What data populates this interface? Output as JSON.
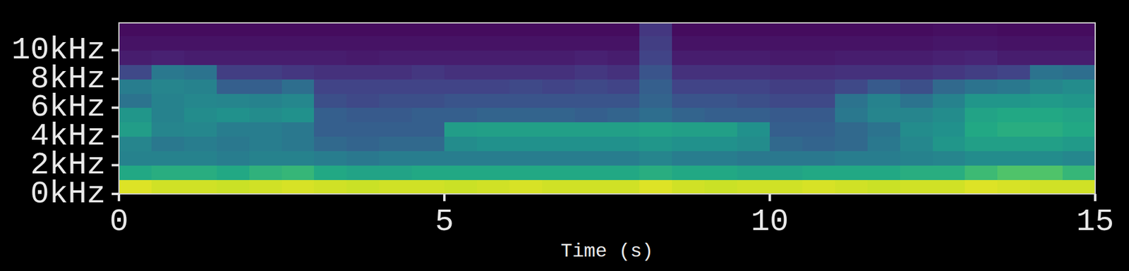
{
  "chart_data": {
    "type": "heatmap",
    "x_label": "Time (s)",
    "xlim": [
      0,
      15
    ],
    "ylim": [
      0,
      11.9
    ],
    "xticks": [
      0,
      5,
      10,
      15
    ],
    "yticks": [
      {
        "value": 0,
        "label": "0kHz"
      },
      {
        "value": 2,
        "label": "2kHz"
      },
      {
        "value": 4,
        "label": "4kHz"
      },
      {
        "value": 6,
        "label": "6kHz"
      },
      {
        "value": 8,
        "label": "8kHz"
      },
      {
        "value": 10,
        "label": "10kHz"
      }
    ],
    "color": "viridis",
    "zlim": [
      0,
      1
    ],
    "xbins": [
      0,
      0.5,
      1,
      1.5,
      2,
      2.5,
      3,
      3.5,
      4,
      4.5,
      5,
      5.5,
      6,
      6.5,
      7,
      7.5,
      8,
      8.5,
      9,
      9.5,
      10,
      10.5,
      11,
      11.5,
      12,
      12.5,
      13,
      13.5,
      14,
      14.5,
      15
    ],
    "ybins": [
      0,
      1,
      2,
      3,
      4,
      5,
      6,
      7,
      8,
      9,
      10,
      11,
      12
    ],
    "values": [
      [
        0.95,
        0.93,
        0.93,
        0.92,
        0.93,
        0.94,
        0.93,
        0.92,
        0.93,
        0.93,
        0.92,
        0.93,
        0.94,
        0.93,
        0.93,
        0.93,
        0.95,
        0.93,
        0.92,
        0.93,
        0.93,
        0.94,
        0.93,
        0.92,
        0.93,
        0.93,
        0.95,
        0.94,
        0.93,
        0.93
      ],
      [
        0.6,
        0.62,
        0.62,
        0.6,
        0.64,
        0.66,
        0.6,
        0.58,
        0.58,
        0.6,
        0.6,
        0.6,
        0.6,
        0.6,
        0.6,
        0.6,
        0.62,
        0.6,
        0.6,
        0.58,
        0.58,
        0.6,
        0.6,
        0.6,
        0.62,
        0.62,
        0.68,
        0.72,
        0.72,
        0.66
      ],
      [
        0.44,
        0.44,
        0.44,
        0.42,
        0.44,
        0.44,
        0.42,
        0.4,
        0.42,
        0.42,
        0.42,
        0.42,
        0.42,
        0.42,
        0.42,
        0.42,
        0.45,
        0.42,
        0.42,
        0.4,
        0.4,
        0.4,
        0.42,
        0.42,
        0.44,
        0.45,
        0.48,
        0.48,
        0.48,
        0.46
      ],
      [
        0.45,
        0.4,
        0.42,
        0.4,
        0.42,
        0.4,
        0.34,
        0.32,
        0.34,
        0.34,
        0.48,
        0.5,
        0.5,
        0.5,
        0.5,
        0.5,
        0.52,
        0.5,
        0.5,
        0.48,
        0.34,
        0.32,
        0.34,
        0.4,
        0.46,
        0.52,
        0.56,
        0.56,
        0.56,
        0.54
      ],
      [
        0.55,
        0.45,
        0.46,
        0.42,
        0.42,
        0.4,
        0.3,
        0.3,
        0.3,
        0.3,
        0.55,
        0.56,
        0.56,
        0.56,
        0.56,
        0.56,
        0.58,
        0.56,
        0.56,
        0.5,
        0.3,
        0.3,
        0.34,
        0.38,
        0.48,
        0.5,
        0.6,
        0.62,
        0.62,
        0.6
      ],
      [
        0.52,
        0.44,
        0.48,
        0.5,
        0.48,
        0.5,
        0.3,
        0.28,
        0.28,
        0.3,
        0.3,
        0.32,
        0.32,
        0.32,
        0.3,
        0.32,
        0.36,
        0.32,
        0.3,
        0.3,
        0.28,
        0.28,
        0.4,
        0.45,
        0.45,
        0.48,
        0.58,
        0.6,
        0.6,
        0.58
      ],
      [
        0.38,
        0.44,
        0.46,
        0.45,
        0.44,
        0.46,
        0.24,
        0.22,
        0.24,
        0.24,
        0.26,
        0.26,
        0.26,
        0.26,
        0.26,
        0.26,
        0.32,
        0.26,
        0.26,
        0.24,
        0.22,
        0.22,
        0.38,
        0.44,
        0.38,
        0.44,
        0.52,
        0.52,
        0.54,
        0.52
      ],
      [
        0.42,
        0.45,
        0.44,
        0.3,
        0.3,
        0.36,
        0.2,
        0.2,
        0.2,
        0.2,
        0.2,
        0.2,
        0.22,
        0.2,
        0.22,
        0.2,
        0.3,
        0.2,
        0.2,
        0.2,
        0.18,
        0.18,
        0.22,
        0.28,
        0.24,
        0.34,
        0.38,
        0.4,
        0.45,
        0.48
      ],
      [
        0.22,
        0.4,
        0.38,
        0.18,
        0.18,
        0.16,
        0.14,
        0.14,
        0.14,
        0.16,
        0.14,
        0.14,
        0.14,
        0.14,
        0.16,
        0.14,
        0.26,
        0.14,
        0.14,
        0.14,
        0.13,
        0.13,
        0.14,
        0.14,
        0.14,
        0.16,
        0.18,
        0.2,
        0.38,
        0.36
      ],
      [
        0.08,
        0.09,
        0.08,
        0.08,
        0.08,
        0.08,
        0.08,
        0.07,
        0.08,
        0.08,
        0.08,
        0.08,
        0.08,
        0.08,
        0.09,
        0.08,
        0.2,
        0.08,
        0.08,
        0.08,
        0.07,
        0.07,
        0.08,
        0.08,
        0.08,
        0.09,
        0.1,
        0.08,
        0.08,
        0.08
      ],
      [
        0.05,
        0.05,
        0.05,
        0.05,
        0.05,
        0.05,
        0.05,
        0.05,
        0.05,
        0.05,
        0.05,
        0.05,
        0.05,
        0.05,
        0.05,
        0.05,
        0.18,
        0.05,
        0.05,
        0.05,
        0.05,
        0.05,
        0.05,
        0.05,
        0.05,
        0.06,
        0.06,
        0.05,
        0.05,
        0.05
      ],
      [
        0.03,
        0.03,
        0.03,
        0.03,
        0.03,
        0.03,
        0.03,
        0.03,
        0.03,
        0.03,
        0.03,
        0.03,
        0.03,
        0.03,
        0.03,
        0.03,
        0.16,
        0.03,
        0.03,
        0.03,
        0.03,
        0.03,
        0.03,
        0.03,
        0.03,
        0.04,
        0.04,
        0.03,
        0.03,
        0.03
      ]
    ]
  }
}
